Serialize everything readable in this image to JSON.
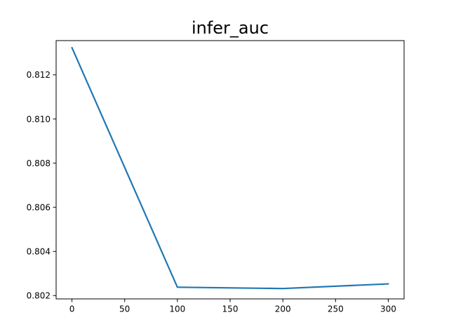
{
  "chart_data": {
    "type": "line",
    "title": "infer_auc",
    "xlabel": "",
    "ylabel": "",
    "xlim": [
      -15,
      315
    ],
    "ylim": [
      0.80185,
      0.81355
    ],
    "xticks": [
      0,
      50,
      100,
      150,
      200,
      250,
      300
    ],
    "yticks": [
      0.802,
      0.804,
      0.806,
      0.808,
      0.81,
      0.812
    ],
    "ytick_labels": [
      "0.802",
      "0.804",
      "0.806",
      "0.808",
      "0.810",
      "0.812"
    ],
    "grid": false,
    "series": [
      {
        "color": "#1f77b4",
        "x": [
          0,
          100,
          200,
          300
        ],
        "y": [
          0.81323,
          0.80238,
          0.80232,
          0.80253
        ]
      }
    ]
  }
}
